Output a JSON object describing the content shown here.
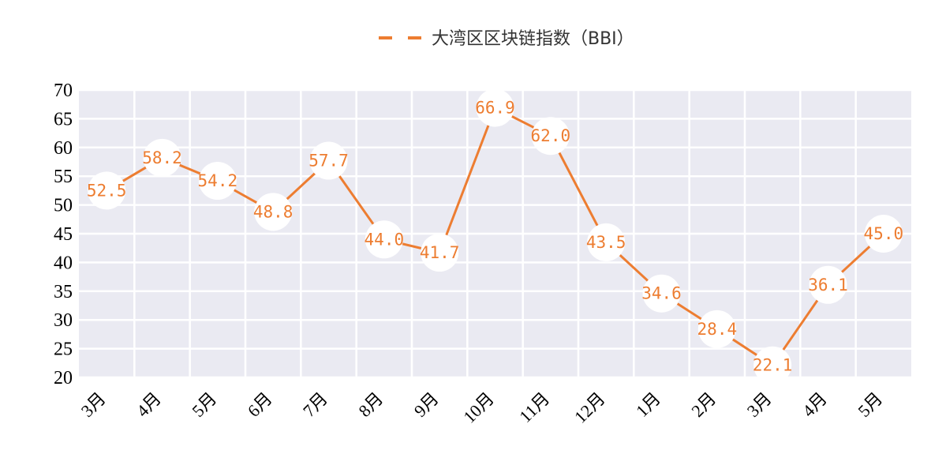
{
  "chart_data": {
    "type": "line",
    "categories": [
      "3月",
      "4月",
      "5月",
      "6月",
      "7月",
      "8月",
      "9月",
      "10月",
      "11月",
      "12月",
      "1月",
      "2月",
      "3月",
      "4月",
      "5月"
    ],
    "series": [
      {
        "name": "大湾区区块链指数（BBI）",
        "values": [
          52.5,
          58.2,
          54.2,
          48.8,
          57.7,
          44.0,
          41.7,
          66.9,
          62.0,
          43.5,
          34.6,
          28.4,
          22.1,
          36.1,
          45.0
        ],
        "labels": [
          "52.5",
          "58.2",
          "54.2",
          "48.8",
          "57.7",
          "44.0",
          "41.7",
          "66.9",
          "62.0",
          "43.5",
          "34.6",
          "28.4",
          "22.1",
          "36.1",
          "45.0"
        ]
      }
    ],
    "yticks": [
      "20",
      "25",
      "30",
      "35",
      "40",
      "45",
      "50",
      "55",
      "60",
      "65",
      "70"
    ],
    "ylim": [
      20,
      70
    ],
    "grid": true,
    "legend": "top-center",
    "colors": {
      "line": "#ed7d31",
      "plot_bg": "#eaeaf2",
      "grid": "#ffffff",
      "label_bg": "#ffffff"
    }
  }
}
